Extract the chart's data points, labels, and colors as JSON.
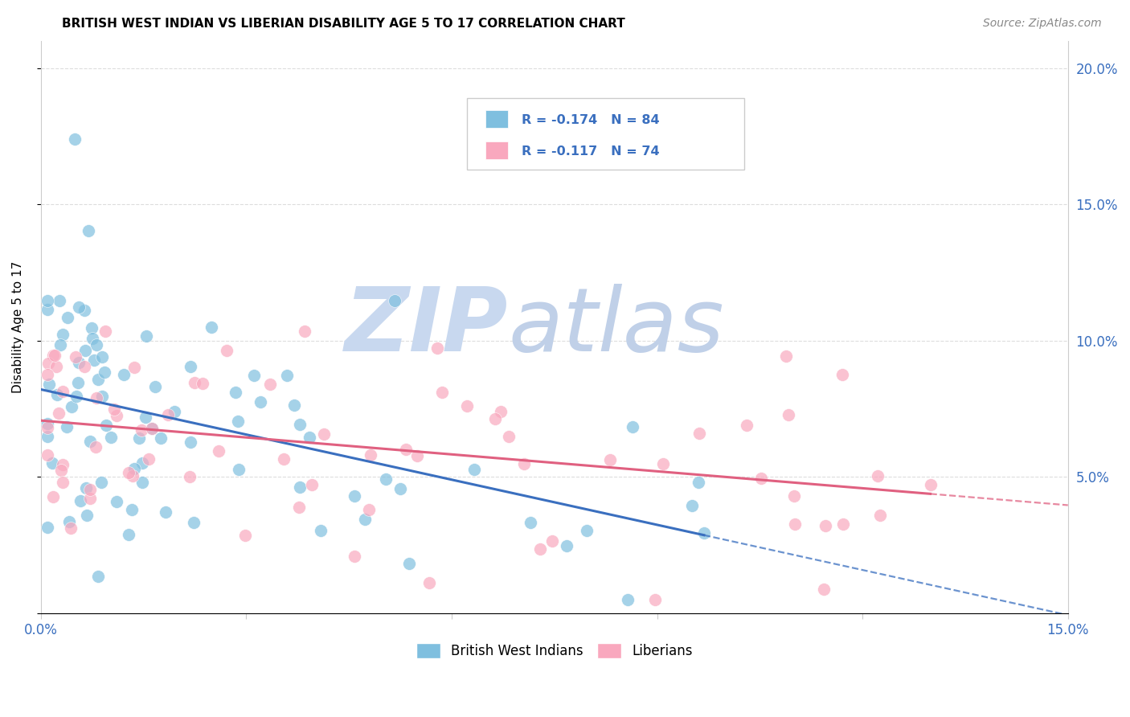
{
  "title": "BRITISH WEST INDIAN VS LIBERIAN DISABILITY AGE 5 TO 17 CORRELATION CHART",
  "source": "Source: ZipAtlas.com",
  "ylabel": "Disability Age 5 to 17",
  "xlim": [
    0.0,
    0.15
  ],
  "ylim": [
    0.0,
    0.21
  ],
  "blue_color": "#7fbfdf",
  "pink_color": "#f9a8be",
  "blue_line_color": "#3a6fbf",
  "pink_line_color": "#e06080",
  "blue_R": -0.174,
  "blue_N": 84,
  "pink_R": -0.117,
  "pink_N": 74,
  "legend_label_blue": "British West Indians",
  "legend_label_pink": "Liberians",
  "watermark_zip_color": "#c8d8ef",
  "watermark_atlas_color": "#c0d0e8",
  "title_fontsize": 11,
  "source_fontsize": 10,
  "tick_label_color": "#3a6fbf",
  "ylabel_fontsize": 11
}
